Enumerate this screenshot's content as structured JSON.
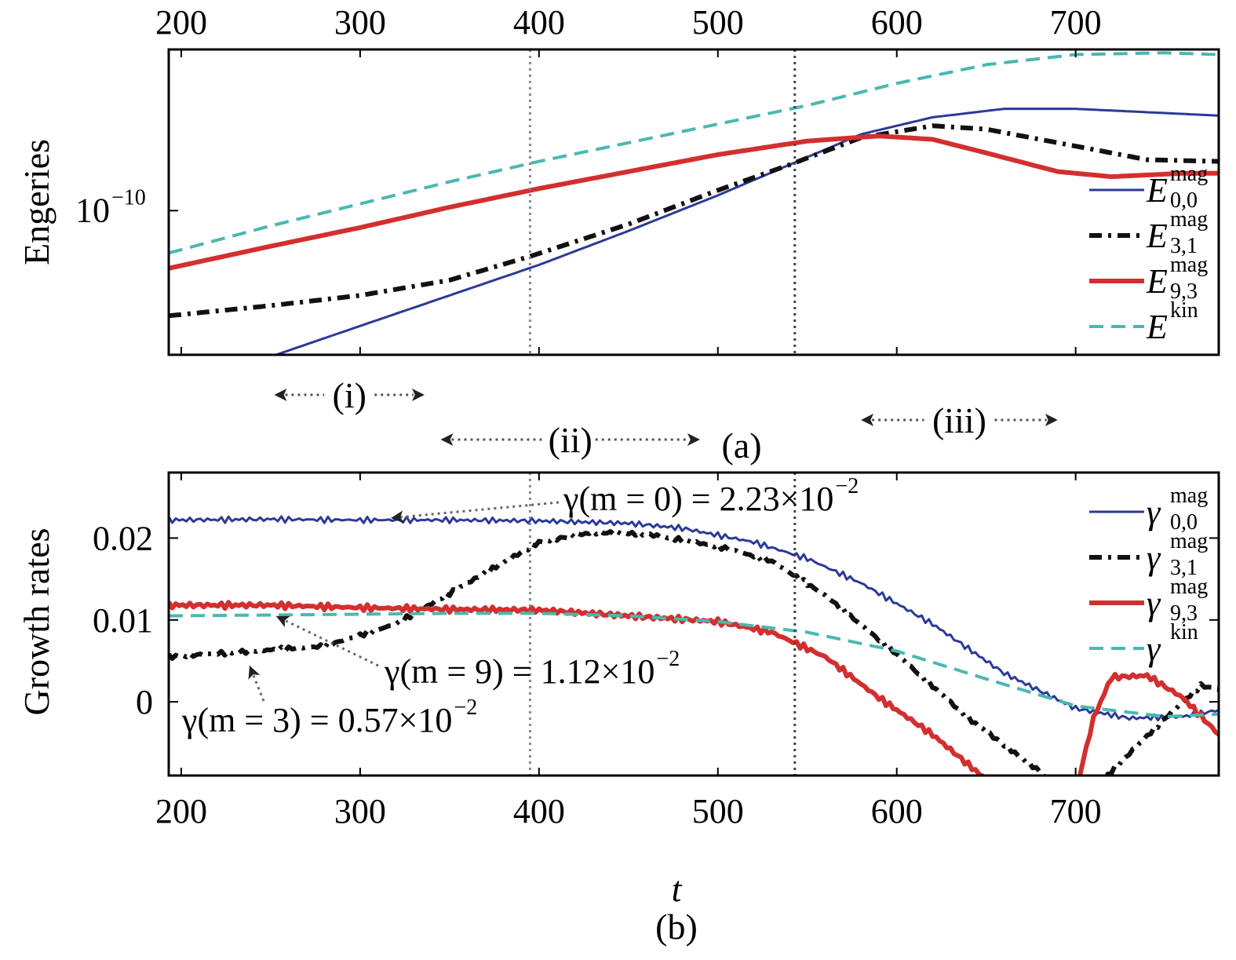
{
  "chart_data": [
    {
      "panel_label": "(a)",
      "type": "line",
      "ylabel": "Engeries",
      "y_scale": "log",
      "xlim": [
        193,
        780
      ],
      "ylim_log10": [
        -10.85,
        -9.05
      ],
      "x_ticks": [
        200,
        300,
        400,
        500,
        600,
        700
      ],
      "x_tick_labels": [
        "200",
        "300",
        "400",
        "500",
        "600",
        "700"
      ],
      "y_ticks_log10": [
        -10
      ],
      "y_tick_labels": [
        {
          "base": "10",
          "exp": "−10"
        }
      ],
      "vlines": [
        395,
        543
      ],
      "legend": "right",
      "series": [
        {
          "name": "E",
          "sup": "mag",
          "sub": "0,0",
          "color": "#2b3a97",
          "width": 3,
          "dash": "",
          "x": [
            253,
            300,
            350,
            400,
            450,
            500,
            540,
            580,
            620,
            660,
            700,
            740,
            780
          ],
          "y": [
            -10.85,
            -10.68,
            -10.5,
            -10.32,
            -10.12,
            -9.91,
            -9.73,
            -9.55,
            -9.45,
            -9.4,
            -9.4,
            -9.42,
            -9.44
          ]
        },
        {
          "name": "E",
          "sup": "mag",
          "sub": "3,1",
          "color": "#111111",
          "width": 6,
          "dash": "16,8,4,8",
          "x": [
            193,
            250,
            300,
            350,
            395,
            450,
            500,
            540,
            580,
            620,
            650,
            700,
            740,
            780
          ],
          "y": [
            -10.62,
            -10.56,
            -10.5,
            -10.41,
            -10.27,
            -10.08,
            -9.88,
            -9.73,
            -9.57,
            -9.5,
            -9.52,
            -9.62,
            -9.7,
            -9.71
          ]
        },
        {
          "name": "E",
          "sup": "mag",
          "sub": "9,3",
          "color": "#d32f2f",
          "width": 6,
          "dash": "",
          "x": [
            193,
            250,
            300,
            350,
            400,
            450,
            500,
            550,
            590,
            620,
            650,
            690,
            720,
            760,
            780
          ],
          "y": [
            -10.34,
            -10.21,
            -10.1,
            -9.98,
            -9.87,
            -9.77,
            -9.67,
            -9.59,
            -9.56,
            -9.58,
            -9.66,
            -9.77,
            -9.8,
            -9.78,
            -9.78
          ]
        },
        {
          "name": "E",
          "sup": "kin",
          "sub": "",
          "color": "#4ab8b0",
          "width": 4,
          "dash": "18,10",
          "x": [
            193,
            250,
            300,
            350,
            400,
            450,
            500,
            550,
            600,
            650,
            700,
            750,
            780
          ],
          "y": [
            -10.25,
            -10.09,
            -9.96,
            -9.83,
            -9.71,
            -9.6,
            -9.49,
            -9.38,
            -9.25,
            -9.14,
            -9.08,
            -9.07,
            -9.08
          ]
        }
      ],
      "regions": [
        {
          "label": "(i)",
          "from": 252,
          "to": 336
        },
        {
          "label": "(ii)",
          "from": 345,
          "to": 490
        },
        {
          "label": "(iii)",
          "from": 580,
          "to": 690
        }
      ]
    },
    {
      "panel_label": "(b)",
      "type": "line",
      "xlabel": "t",
      "ylabel": "Growth rates",
      "xlim": [
        193,
        780
      ],
      "ylim": [
        -0.009,
        0.028
      ],
      "x_ticks": [
        200,
        300,
        400,
        500,
        600,
        700
      ],
      "x_tick_labels": [
        "200",
        "300",
        "400",
        "500",
        "600",
        "700"
      ],
      "y_ticks": [
        0,
        0.01,
        0.02
      ],
      "y_tick_labels": [
        "0",
        "0.01",
        "0.02"
      ],
      "vlines": [
        395,
        543
      ],
      "legend": "right",
      "series": [
        {
          "name": "γ",
          "sup": "mag",
          "sub": "0,0",
          "color": "#2b3a97",
          "width": 3,
          "dash": "",
          "jitter": 0.0004,
          "x": [
            193,
            250,
            300,
            350,
            400,
            450,
            480,
            520,
            550,
            580,
            620,
            660,
            700,
            730,
            760,
            780
          ],
          "y": [
            0.0222,
            0.0223,
            0.0222,
            0.0222,
            0.0221,
            0.0218,
            0.0212,
            0.0195,
            0.0175,
            0.0145,
            0.0095,
            0.0035,
            -0.0008,
            -0.002,
            -0.0018,
            -0.001
          ]
        },
        {
          "name": "γ",
          "sup": "mag",
          "sub": "3,1",
          "color": "#111111",
          "width": 6,
          "dash": "16,8,4,8",
          "jitter": 0.0003,
          "x": [
            193,
            240,
            280,
            320,
            360,
            400,
            430,
            460,
            500,
            530,
            560,
            600,
            640,
            680,
            700,
            720,
            750,
            770,
            780
          ],
          "y": [
            0.0055,
            0.0062,
            0.0068,
            0.0095,
            0.0145,
            0.0195,
            0.0207,
            0.0205,
            0.019,
            0.0172,
            0.013,
            0.0058,
            -0.002,
            -0.0085,
            -0.013,
            -0.0085,
            -0.002,
            0.002,
            0.0015
          ]
        },
        {
          "name": "γ",
          "sup": "mag",
          "sub": "9,3",
          "color": "#d32f2f",
          "width": 6,
          "dash": "",
          "jitter": 0.0004,
          "x": [
            193,
            250,
            300,
            350,
            400,
            450,
            500,
            530,
            560,
            590,
            620,
            650,
            680,
            700,
            710,
            720,
            740,
            760,
            780
          ],
          "y": [
            0.0118,
            0.0118,
            0.0115,
            0.0113,
            0.0112,
            0.0105,
            0.0098,
            0.0085,
            0.0055,
            0.0005,
            -0.004,
            -0.0095,
            -0.014,
            -0.011,
            -0.002,
            0.003,
            0.0032,
            0.0005,
            -0.004
          ]
        },
        {
          "name": "γ",
          "sup": "kin",
          "sub": "",
          "color": "#4ab8b0",
          "width": 4,
          "dash": "18,10",
          "jitter": 0,
          "x": [
            193,
            250,
            300,
            350,
            400,
            450,
            500,
            550,
            600,
            650,
            700,
            750,
            780
          ],
          "y": [
            0.0105,
            0.0106,
            0.0107,
            0.0108,
            0.0108,
            0.0105,
            0.0098,
            0.0085,
            0.0062,
            0.0028,
            -0.0005,
            -0.0018,
            -0.0015
          ]
        }
      ],
      "annotations": [
        {
          "text": "γ(m = 0) = 2.23×10",
          "exp": "−2",
          "text_x": 490,
          "text_y": 0.0265,
          "arrow_to_x": 315,
          "arrow_to_y": 0.0237
        },
        {
          "text": "γ(m = 9) = 1.12×10",
          "exp": "−2",
          "text_x": 345,
          "text_y": 0.0035,
          "arrow_to_x": 252,
          "arrow_to_y": 0.0118
        },
        {
          "text": "γ(m = 3) = 0.57×10",
          "exp": "−2",
          "text_x": 203,
          "text_y": -0.0025,
          "arrow_to_x": 238,
          "arrow_to_y": 0.0055
        }
      ]
    }
  ]
}
